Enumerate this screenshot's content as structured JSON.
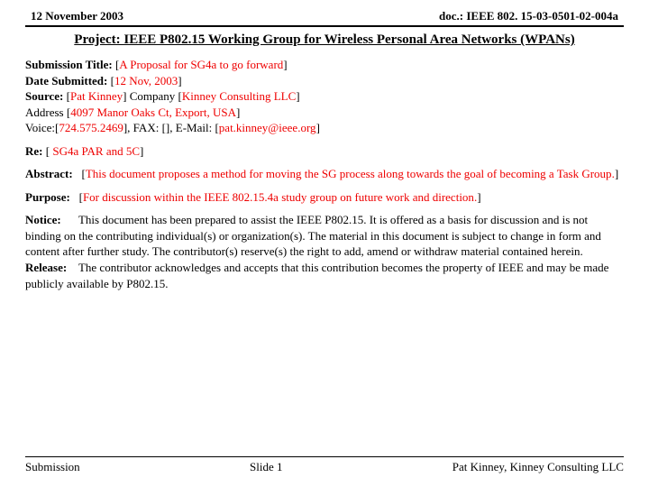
{
  "header": {
    "date": "12 November 2003",
    "docnum": "doc.: IEEE 802. 15-03-0501-02-004a"
  },
  "title": "Project: IEEE P802.15 Working Group for Wireless Personal Area Networks (WPANs)",
  "submission": {
    "title_label": "Submission Title:",
    "title_value": "A Proposal for SG4a to go forward",
    "date_label": "Date Submitted:",
    "date_value": "12 Nov, 2003",
    "source_label": "Source:",
    "source_value": "Pat Kinney",
    "company_label": "Company",
    "company_value": "Kinney Consulting LLC",
    "address_label": "Address",
    "address_value": "4097 Manor Oaks Ct, Export, USA",
    "voice_label": "Voice:",
    "voice_value": "724.575.2469",
    "fax_label": "FAX:",
    "fax_value": "",
    "email_label": "E-Mail:",
    "email_value": "pat.kinney@ieee.org"
  },
  "re": {
    "label": "Re:",
    "value": "SG4a PAR and 5C"
  },
  "abstract": {
    "label": "Abstract:",
    "value": "This document proposes a method for moving the SG process along towards the goal of becoming a Task Group"
  },
  "purpose": {
    "label": "Purpose:",
    "value": "For discussion within the IEEE 802.15.4a study group on future work and direction"
  },
  "notice": {
    "label": "Notice:",
    "value": "This document has been prepared to assist the IEEE P802.15.  It is offered as a basis for discussion and is not binding on the contributing individual(s) or organization(s). The material in this document is subject to change in form and content after further study. The contributor(s) reserve(s) the right to add, amend or withdraw material contained herein."
  },
  "release": {
    "label": "Release:",
    "value": "The contributor acknowledges and accepts that this contribution becomes the property of IEEE and may be made publicly available by P802.15."
  },
  "footer": {
    "left": "Submission",
    "center": "Slide 1",
    "right": "Pat Kinney, Kinney Consulting LLC"
  }
}
